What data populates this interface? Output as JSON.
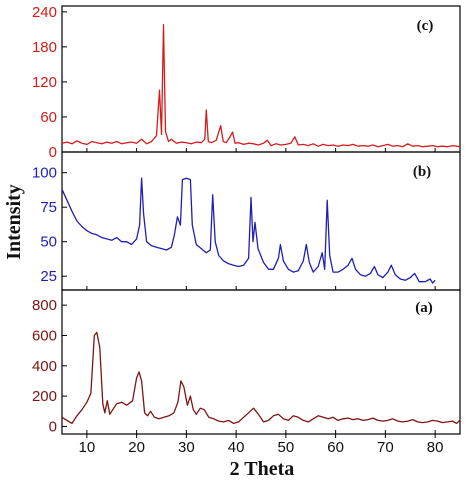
{
  "chart_data": {
    "type": "line",
    "xlabel": "2 Theta",
    "ylabel": "Intensity",
    "xlim": [
      5,
      85
    ],
    "x_ticks": [
      10,
      20,
      30,
      40,
      50,
      60,
      70,
      80
    ],
    "panels": [
      {
        "label": "(c)",
        "color": "#d41c1c",
        "ylim": [
          0,
          250
        ],
        "y_ticks": [
          0,
          60,
          120,
          180,
          240
        ],
        "points": [
          [
            5,
            15
          ],
          [
            6,
            17
          ],
          [
            7,
            14
          ],
          [
            8,
            19
          ],
          [
            9,
            15
          ],
          [
            10,
            13
          ],
          [
            11,
            18
          ],
          [
            12,
            16
          ],
          [
            13,
            14
          ],
          [
            14,
            17
          ],
          [
            15,
            15
          ],
          [
            16,
            18
          ],
          [
            17,
            14
          ],
          [
            18,
            16
          ],
          [
            19,
            17
          ],
          [
            20,
            15
          ],
          [
            21,
            22
          ],
          [
            22,
            14
          ],
          [
            23,
            18
          ],
          [
            24,
            28
          ],
          [
            24.6,
            106
          ],
          [
            25,
            30
          ],
          [
            25.4,
            218
          ],
          [
            25.8,
            35
          ],
          [
            26.4,
            18
          ],
          [
            27,
            22
          ],
          [
            28,
            15
          ],
          [
            29,
            17
          ],
          [
            30,
            16
          ],
          [
            31,
            14
          ],
          [
            32,
            17
          ],
          [
            33,
            16
          ],
          [
            33.7,
            22
          ],
          [
            34,
            72
          ],
          [
            34.4,
            18
          ],
          [
            35,
            16
          ],
          [
            36,
            20
          ],
          [
            36.9,
            45
          ],
          [
            37.4,
            18
          ],
          [
            38,
            16
          ],
          [
            38.7,
            25
          ],
          [
            39.3,
            34
          ],
          [
            39.8,
            15
          ],
          [
            40.5,
            16
          ],
          [
            41.5,
            13
          ],
          [
            42.5,
            15
          ],
          [
            43.5,
            14
          ],
          [
            44.5,
            12
          ],
          [
            45.5,
            15
          ],
          [
            46.3,
            20
          ],
          [
            47,
            11
          ],
          [
            48,
            14
          ],
          [
            49,
            12
          ],
          [
            50,
            13
          ],
          [
            51,
            15
          ],
          [
            51.8,
            26
          ],
          [
            52.5,
            12
          ],
          [
            53.5,
            13
          ],
          [
            54.5,
            11
          ],
          [
            55.5,
            14
          ],
          [
            56.5,
            10
          ],
          [
            57.5,
            13
          ],
          [
            58.5,
            11
          ],
          [
            59.5,
            12
          ],
          [
            60.5,
            10
          ],
          [
            61.5,
            12
          ],
          [
            62.5,
            11
          ],
          [
            63.5,
            13
          ],
          [
            64.5,
            10
          ],
          [
            65.5,
            11
          ],
          [
            66.5,
            10
          ],
          [
            67.5,
            12
          ],
          [
            68.5,
            9
          ],
          [
            69.5,
            11
          ],
          [
            70.5,
            13
          ],
          [
            71.5,
            10
          ],
          [
            72.5,
            11
          ],
          [
            73.5,
            9
          ],
          [
            74.5,
            14
          ],
          [
            75.5,
            10
          ],
          [
            76.5,
            11
          ],
          [
            77.5,
            9
          ],
          [
            78.5,
            10
          ],
          [
            79.5,
            11
          ],
          [
            80.5,
            9
          ],
          [
            81.5,
            10
          ],
          [
            82.5,
            9
          ],
          [
            83.5,
            11
          ],
          [
            85,
            9
          ]
        ]
      },
      {
        "label": "(b)",
        "color": "#1f1fb4",
        "ylim": [
          15,
          115
        ],
        "y_ticks": [
          25,
          50,
          75,
          100
        ],
        "points": [
          [
            5,
            88
          ],
          [
            6,
            80
          ],
          [
            7,
            72
          ],
          [
            8,
            65
          ],
          [
            9,
            61
          ],
          [
            10,
            58
          ],
          [
            11,
            56
          ],
          [
            12,
            55
          ],
          [
            13,
            53
          ],
          [
            14,
            52
          ],
          [
            15,
            51
          ],
          [
            16,
            53
          ],
          [
            17,
            50
          ],
          [
            18,
            50
          ],
          [
            19,
            48
          ],
          [
            20,
            52
          ],
          [
            20.6,
            62
          ],
          [
            21,
            96
          ],
          [
            21.4,
            70
          ],
          [
            22,
            50
          ],
          [
            23,
            47
          ],
          [
            24,
            46
          ],
          [
            25,
            45
          ],
          [
            26,
            44
          ],
          [
            27,
            46
          ],
          [
            27.6,
            55
          ],
          [
            28.2,
            68
          ],
          [
            28.8,
            62
          ],
          [
            29.2,
            95
          ],
          [
            30,
            96
          ],
          [
            30.8,
            95
          ],
          [
            31.2,
            62
          ],
          [
            32,
            48
          ],
          [
            33,
            45
          ],
          [
            34,
            42
          ],
          [
            34.8,
            44
          ],
          [
            35.3,
            84
          ],
          [
            35.8,
            50
          ],
          [
            36.5,
            40
          ],
          [
            37.5,
            36
          ],
          [
            38.5,
            34
          ],
          [
            39.5,
            33
          ],
          [
            40.5,
            32
          ],
          [
            41.5,
            33
          ],
          [
            42.5,
            38
          ],
          [
            43,
            82
          ],
          [
            43.4,
            50
          ],
          [
            43.8,
            64
          ],
          [
            44.4,
            45
          ],
          [
            45.5,
            35
          ],
          [
            46.5,
            30
          ],
          [
            47.5,
            30
          ],
          [
            48.5,
            38
          ],
          [
            48.9,
            48
          ],
          [
            49.5,
            36
          ],
          [
            50.5,
            30
          ],
          [
            51.5,
            28
          ],
          [
            52.5,
            29
          ],
          [
            53.5,
            36
          ],
          [
            54.1,
            48
          ],
          [
            54.7,
            35
          ],
          [
            55.5,
            28
          ],
          [
            56.5,
            32
          ],
          [
            57.3,
            42
          ],
          [
            57.8,
            30
          ],
          [
            58.3,
            80
          ],
          [
            58.8,
            40
          ],
          [
            59.5,
            28
          ],
          [
            60.5,
            28
          ],
          [
            61.5,
            30
          ],
          [
            62.5,
            33
          ],
          [
            63.3,
            38
          ],
          [
            64,
            30
          ],
          [
            65,
            26
          ],
          [
            66,
            25
          ],
          [
            67,
            27
          ],
          [
            67.8,
            32
          ],
          [
            68.5,
            26
          ],
          [
            69.5,
            24
          ],
          [
            70.5,
            28
          ],
          [
            71.2,
            33
          ],
          [
            72,
            26
          ],
          [
            73,
            23
          ],
          [
            74,
            22
          ],
          [
            75,
            24
          ],
          [
            75.9,
            27
          ],
          [
            76.8,
            21
          ],
          [
            78,
            21
          ],
          [
            79,
            23
          ],
          [
            79.5,
            20
          ],
          [
            80,
            22
          ]
        ]
      },
      {
        "label": "(a)",
        "color": "#7e1414",
        "ylim": [
          -50,
          900
        ],
        "y_ticks": [
          0,
          200,
          400,
          600,
          800
        ],
        "points": [
          [
            5,
            60
          ],
          [
            6,
            40
          ],
          [
            7,
            20
          ],
          [
            8,
            70
          ],
          [
            9,
            110
          ],
          [
            10,
            160
          ],
          [
            10.8,
            220
          ],
          [
            11.5,
            600
          ],
          [
            12,
            620
          ],
          [
            12.6,
            520
          ],
          [
            13.2,
            150
          ],
          [
            13.6,
            90
          ],
          [
            14.1,
            170
          ],
          [
            14.6,
            80
          ],
          [
            15.2,
            110
          ],
          [
            16,
            150
          ],
          [
            17,
            160
          ],
          [
            18,
            140
          ],
          [
            19.2,
            170
          ],
          [
            20,
            320
          ],
          [
            20.5,
            360
          ],
          [
            21,
            300
          ],
          [
            21.6,
            90
          ],
          [
            22.2,
            70
          ],
          [
            22.8,
            100
          ],
          [
            23.6,
            60
          ],
          [
            24.5,
            50
          ],
          [
            25.5,
            60
          ],
          [
            26.5,
            70
          ],
          [
            27.5,
            90
          ],
          [
            28.3,
            160
          ],
          [
            28.9,
            300
          ],
          [
            29.5,
            260
          ],
          [
            30.2,
            140
          ],
          [
            30.8,
            200
          ],
          [
            31.4,
            110
          ],
          [
            32,
            80
          ],
          [
            32.8,
            120
          ],
          [
            33.6,
            110
          ],
          [
            34.5,
            60
          ],
          [
            35.5,
            50
          ],
          [
            36.5,
            35
          ],
          [
            37.5,
            30
          ],
          [
            38.5,
            40
          ],
          [
            39.5,
            20
          ],
          [
            40.5,
            30
          ],
          [
            41.5,
            60
          ],
          [
            42.5,
            90
          ],
          [
            43.5,
            120
          ],
          [
            44.5,
            80
          ],
          [
            45.5,
            30
          ],
          [
            46.5,
            40
          ],
          [
            47.5,
            70
          ],
          [
            48.5,
            80
          ],
          [
            49.5,
            50
          ],
          [
            50.5,
            40
          ],
          [
            51.5,
            70
          ],
          [
            52.5,
            60
          ],
          [
            53.5,
            40
          ],
          [
            54.5,
            30
          ],
          [
            55.5,
            50
          ],
          [
            56.5,
            70
          ],
          [
            57.5,
            60
          ],
          [
            58.5,
            50
          ],
          [
            59.5,
            60
          ],
          [
            60.5,
            40
          ],
          [
            61.5,
            50
          ],
          [
            62.5,
            55
          ],
          [
            63.5,
            45
          ],
          [
            64.5,
            50
          ],
          [
            65.5,
            40
          ],
          [
            66.5,
            45
          ],
          [
            67.5,
            55
          ],
          [
            68.5,
            40
          ],
          [
            69.5,
            35
          ],
          [
            70.5,
            40
          ],
          [
            71.5,
            50
          ],
          [
            72.5,
            35
          ],
          [
            73.5,
            30
          ],
          [
            74.5,
            35
          ],
          [
            75.5,
            45
          ],
          [
            76.5,
            30
          ],
          [
            77.5,
            25
          ],
          [
            78.5,
            30
          ],
          [
            79.5,
            40
          ],
          [
            80.5,
            35
          ],
          [
            81.5,
            25
          ],
          [
            82.5,
            30
          ],
          [
            83.5,
            35
          ],
          [
            84.3,
            20
          ],
          [
            85,
            40
          ]
        ]
      }
    ]
  }
}
